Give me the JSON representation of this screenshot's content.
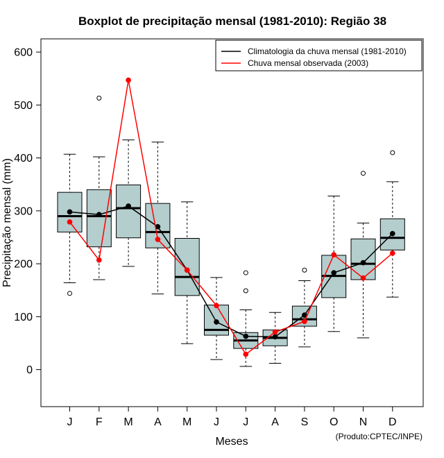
{
  "chart_data": {
    "type": "boxplot",
    "title": "Boxplot de precipitação mensal (1981-2010): Região 38",
    "xlabel": "Meses",
    "ylabel": "Precipitação mensal (mm)",
    "credit": "(Produto:CPTEC/INPE)",
    "ylim": [
      -70,
      625
    ],
    "yticks": [
      0,
      100,
      200,
      300,
      400,
      500,
      600
    ],
    "categories": [
      "J",
      "F",
      "M",
      "A",
      "M",
      "J",
      "J",
      "A",
      "S",
      "O",
      "N",
      "D"
    ],
    "boxes": [
      {
        "whisker_low": 164,
        "q1": 260,
        "median": 290,
        "q3": 335,
        "whisker_high": 407,
        "outliers": [
          144
        ]
      },
      {
        "whisker_low": 170,
        "q1": 232,
        "median": 290,
        "q3": 340,
        "whisker_high": 402,
        "outliers": [
          513
        ]
      },
      {
        "whisker_low": 195,
        "q1": 249,
        "median": 305,
        "q3": 349,
        "whisker_high": 434,
        "outliers": []
      },
      {
        "whisker_low": 143,
        "q1": 230,
        "median": 260,
        "q3": 314,
        "whisker_high": 430,
        "outliers": []
      },
      {
        "whisker_low": 49,
        "q1": 140,
        "median": 175,
        "q3": 248,
        "whisker_high": 317,
        "outliers": []
      },
      {
        "whisker_low": 19,
        "q1": 65,
        "median": 75,
        "q3": 122,
        "whisker_high": 174,
        "outliers": []
      },
      {
        "whisker_low": 6,
        "q1": 40,
        "median": 55,
        "q3": 70,
        "whisker_high": 113,
        "outliers": [
          149,
          183
        ]
      },
      {
        "whisker_low": 12,
        "q1": 45,
        "median": 60,
        "q3": 75,
        "whisker_high": 108,
        "outliers": []
      },
      {
        "whisker_low": 43,
        "q1": 82,
        "median": 95,
        "q3": 120,
        "whisker_high": 168,
        "outliers": [
          188
        ]
      },
      {
        "whisker_low": 72,
        "q1": 136,
        "median": 177,
        "q3": 216,
        "whisker_high": 328,
        "outliers": []
      },
      {
        "whisker_low": 60,
        "q1": 170,
        "median": 200,
        "q3": 247,
        "whisker_high": 277,
        "outliers": [
          371
        ]
      },
      {
        "whisker_low": 137,
        "q1": 226,
        "median": 249,
        "q3": 285,
        "whisker_high": 355,
        "outliers": [
          410
        ]
      }
    ],
    "series": [
      {
        "name": "Climatologia da chuva mensal (1981-2010)",
        "color": "#000000",
        "values": [
          298,
          293,
          309,
          270,
          188,
          90,
          63,
          62,
          103,
          183,
          202,
          257
        ]
      },
      {
        "name": "Chuva mensal observada (2003)",
        "color": "#ff0000",
        "values": [
          279,
          207,
          547,
          246,
          188,
          121,
          29,
          71,
          91,
          217,
          173,
          220
        ]
      }
    ],
    "box_fill": "#b4cdcd",
    "legend_position": "top-right"
  }
}
